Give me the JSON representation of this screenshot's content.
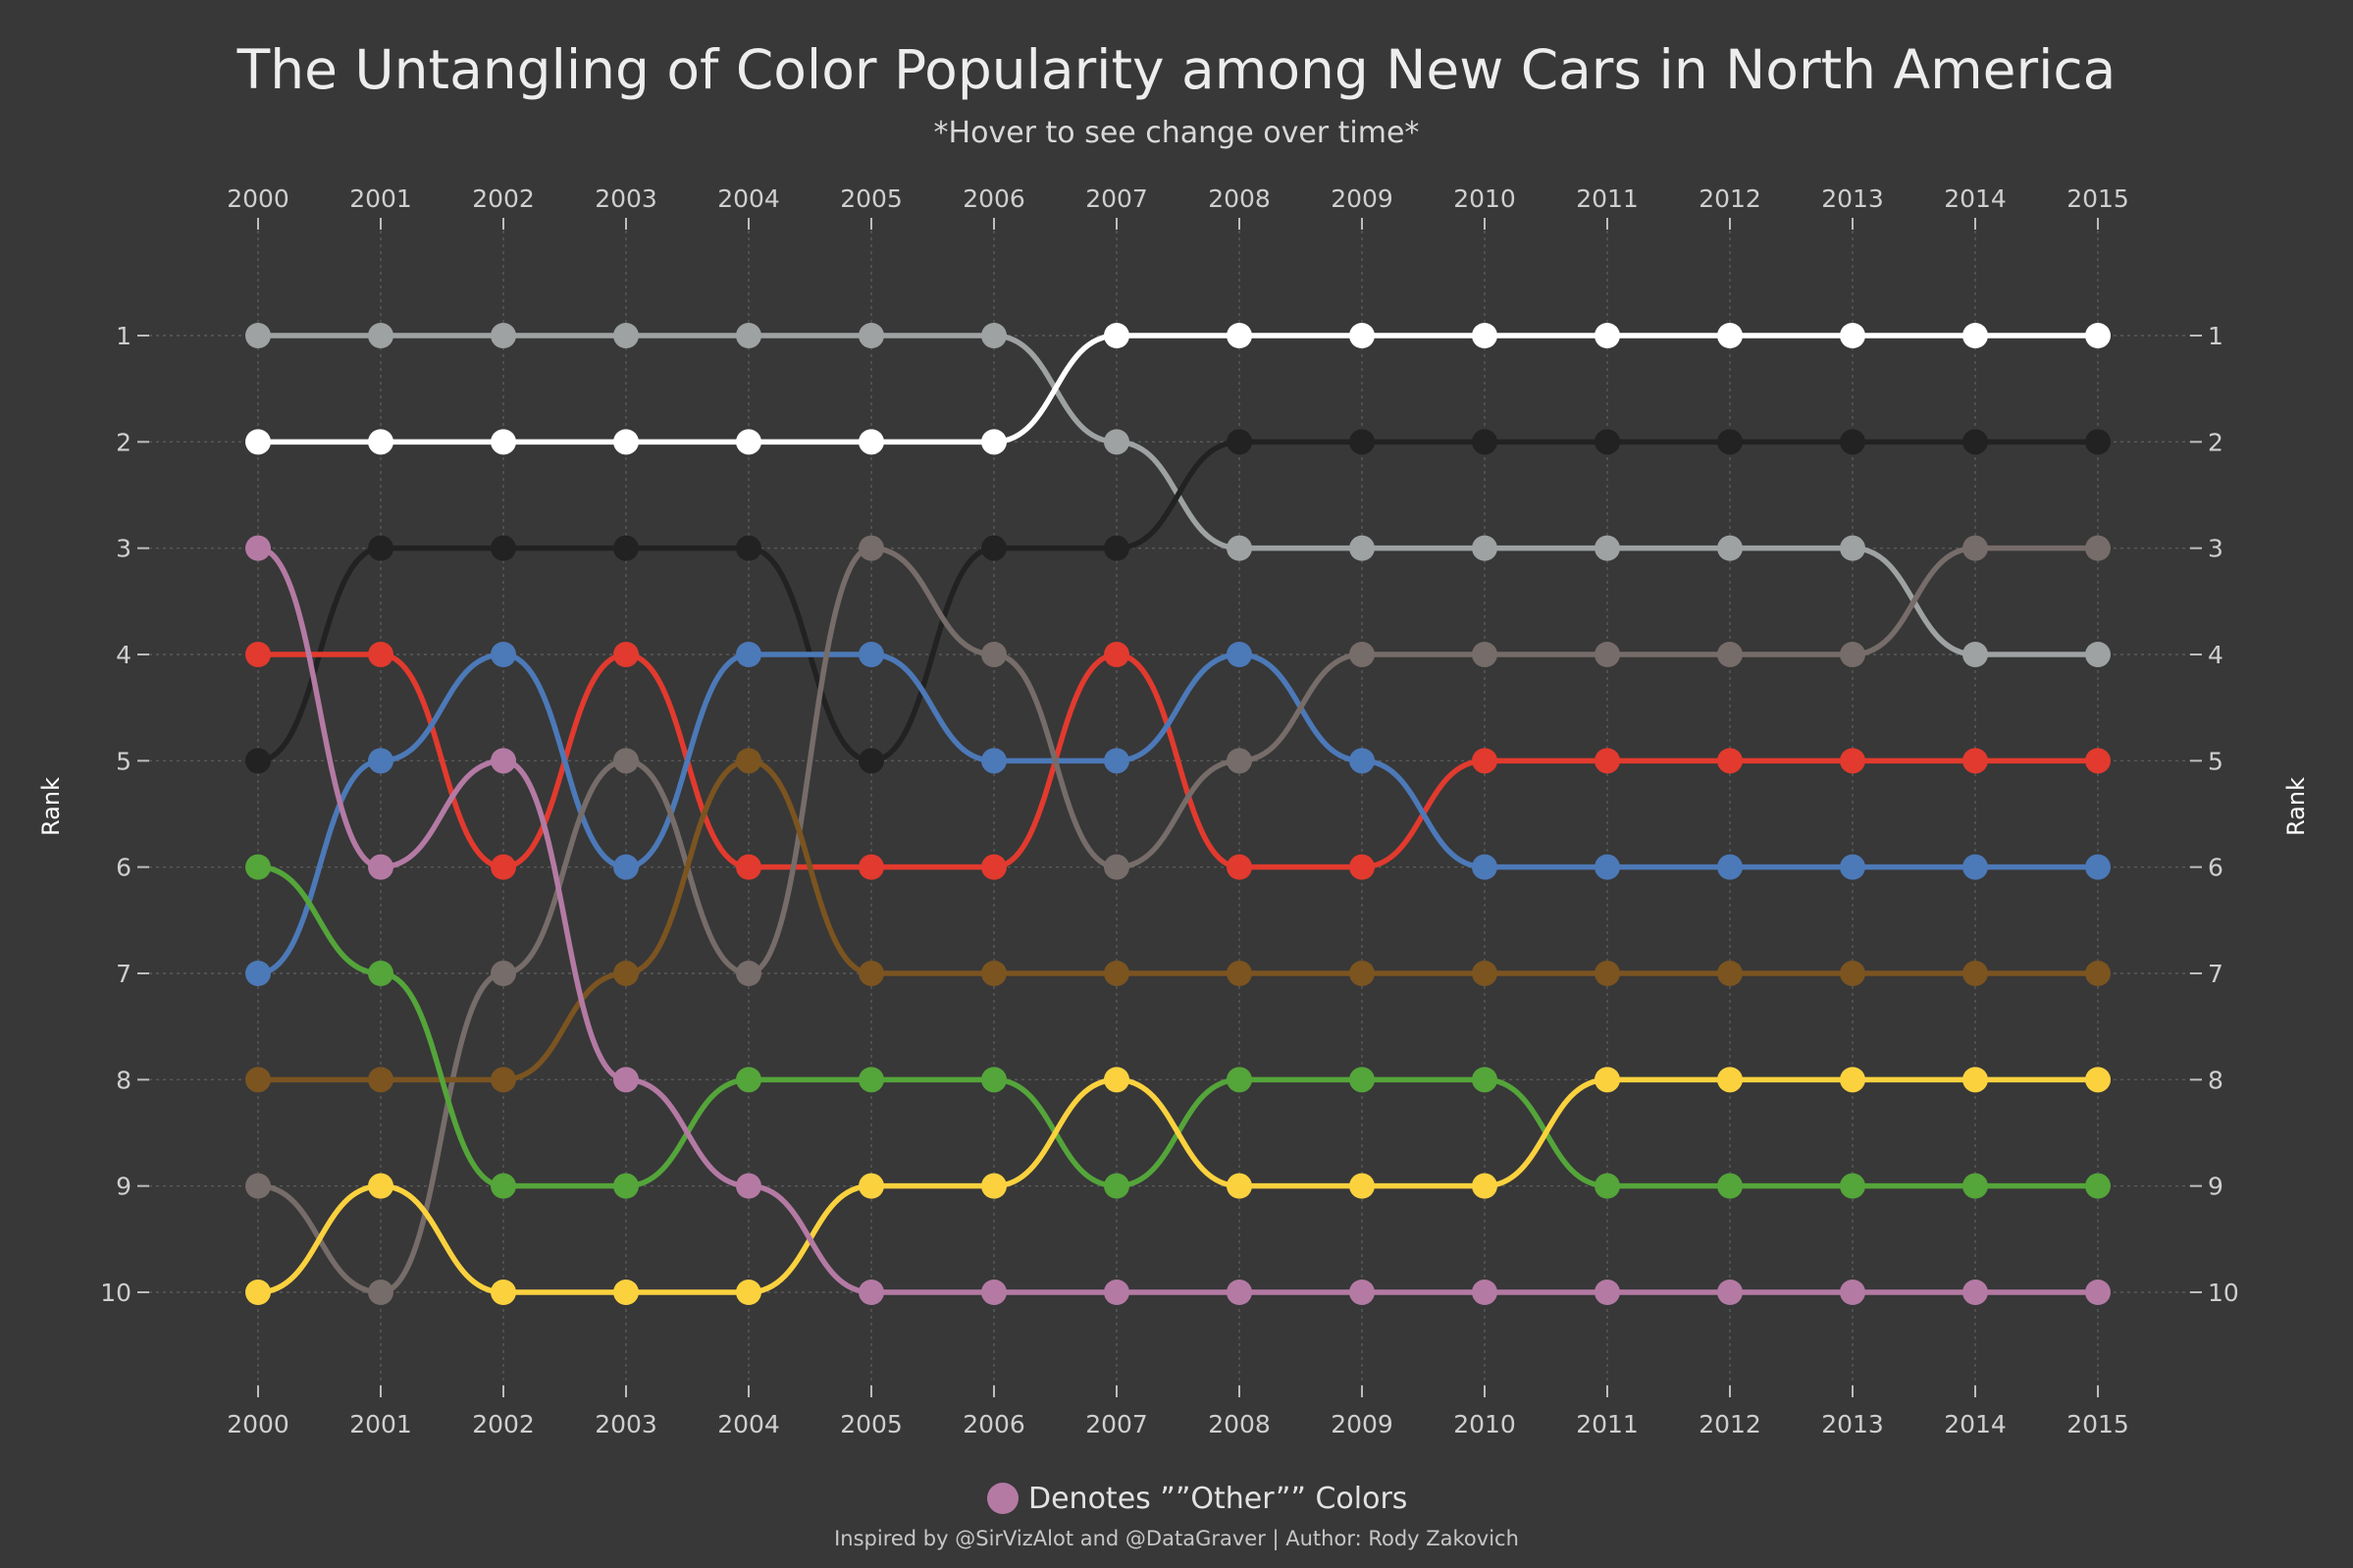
{
  "chart_data": {
    "type": "line",
    "title": "The Untangling of Color Popularity among New Cars in North America",
    "subtitle": "*Hover to see change over time*",
    "xlabel": "",
    "ylabel": "Rank",
    "ylim": [
      1,
      10
    ],
    "y_reversed": true,
    "grid": true,
    "x": [
      2000,
      2001,
      2002,
      2003,
      2004,
      2005,
      2006,
      2007,
      2008,
      2009,
      2010,
      2011,
      2012,
      2013,
      2014,
      2015
    ],
    "x_tick_labels": [
      "2000",
      "2001",
      "2002",
      "2003",
      "2004",
      "2005",
      "2006",
      "2007",
      "2008",
      "2009",
      "2010",
      "2011",
      "2012",
      "2013",
      "2014",
      "2015"
    ],
    "y_ticks": [
      1,
      2,
      3,
      4,
      5,
      6,
      7,
      8,
      9,
      10
    ],
    "y_tick_labels": [
      "1",
      "2",
      "3",
      "4",
      "5",
      "6",
      "7",
      "8",
      "9",
      "10"
    ],
    "series": [
      {
        "color": "#9ea2a2",
        "values": [
          1,
          1,
          1,
          1,
          1,
          1,
          1,
          2,
          3,
          3,
          3,
          3,
          3,
          3,
          4,
          4
        ]
      },
      {
        "color": "#ffffff",
        "values": [
          2,
          2,
          2,
          2,
          2,
          2,
          2,
          1,
          1,
          1,
          1,
          1,
          1,
          1,
          1,
          1
        ]
      },
      {
        "color": "#222222",
        "values": [
          5,
          3,
          3,
          3,
          3,
          5,
          3,
          3,
          2,
          2,
          2,
          2,
          2,
          2,
          2,
          2
        ]
      },
      {
        "color": "#e23a2e",
        "values": [
          4,
          4,
          6,
          4,
          6,
          6,
          6,
          4,
          6,
          6,
          5,
          5,
          5,
          5,
          5,
          5
        ]
      },
      {
        "color": "#4c79b8",
        "values": [
          7,
          5,
          4,
          6,
          4,
          4,
          5,
          5,
          4,
          5,
          6,
          6,
          6,
          6,
          6,
          6
        ]
      },
      {
        "color": "#766c69",
        "values": [
          9,
          10,
          7,
          5,
          7,
          3,
          4,
          6,
          5,
          4,
          4,
          4,
          4,
          4,
          3,
          3
        ]
      },
      {
        "color": "#7b5420",
        "values": [
          8,
          8,
          8,
          7,
          5,
          7,
          7,
          7,
          7,
          7,
          7,
          7,
          7,
          7,
          7,
          7
        ]
      },
      {
        "color": "#54a53a",
        "values": [
          6,
          7,
          9,
          9,
          8,
          8,
          8,
          9,
          8,
          8,
          8,
          9,
          9,
          9,
          9,
          9
        ]
      },
      {
        "color": "#fbd23e",
        "values": [
          10,
          9,
          10,
          10,
          10,
          9,
          9,
          8,
          9,
          9,
          9,
          8,
          8,
          8,
          8,
          8
        ]
      },
      {
        "color": "#b47aa4",
        "values": [
          3,
          6,
          5,
          8,
          9,
          10,
          10,
          10,
          10,
          10,
          10,
          10,
          10,
          10,
          10,
          10
        ]
      }
    ],
    "legend": {
      "text": "Denotes ””Other”” Colors",
      "color": "#b47aa4",
      "placement": "bottom-center"
    },
    "annotations": [
      "Inspired by @SirVizAlot and @DataGraver | Author: Rody Zakovich"
    ]
  }
}
